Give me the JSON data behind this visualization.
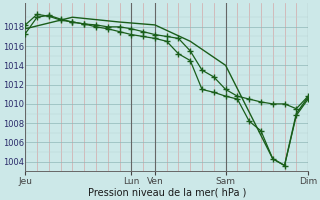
{
  "background_color": "#cce8e8",
  "grid_color_major": "#b0cccc",
  "grid_color_minor": "#e8b8b8",
  "line_color": "#1a5e1a",
  "marker_color": "#1a5e1a",
  "ylabel_ticks": [
    1004,
    1006,
    1008,
    1010,
    1012,
    1014,
    1016,
    1018
  ],
  "ylim": [
    1003.0,
    1020.5
  ],
  "xlabel": "Pression niveau de la mer( hPa )",
  "day_labels": [
    "Jeu",
    "Lun",
    "Ven",
    "Sam",
    "Dim"
  ],
  "day_positions": [
    0,
    9,
    11,
    17,
    24
  ],
  "xlim": [
    0,
    24
  ],
  "series1": {
    "x": [
      0,
      1,
      2,
      3,
      4,
      5,
      6,
      7,
      8,
      9,
      10,
      11,
      12,
      13,
      14,
      15,
      16,
      17,
      18,
      19,
      20,
      21,
      22,
      23,
      24
    ],
    "y": [
      1017.3,
      1019.0,
      1019.2,
      1018.8,
      1018.5,
      1018.3,
      1018.2,
      1018.0,
      1018.0,
      1017.8,
      1017.5,
      1017.2,
      1017.0,
      1016.8,
      1015.5,
      1013.5,
      1012.8,
      1011.5,
      1010.8,
      1010.5,
      1010.2,
      1010.0,
      1010.0,
      1009.5,
      1010.8
    ]
  },
  "series2": {
    "x": [
      0,
      1,
      2,
      3,
      4,
      5,
      6,
      7,
      8,
      9,
      10,
      11,
      12,
      13,
      14,
      15,
      16,
      17,
      18,
      19,
      20,
      21,
      22,
      23,
      24
    ],
    "y": [
      1018.2,
      1019.3,
      1019.1,
      1018.7,
      1018.5,
      1018.3,
      1018.0,
      1017.8,
      1017.5,
      1017.2,
      1017.0,
      1016.8,
      1016.5,
      1015.2,
      1014.5,
      1011.5,
      1011.2,
      1010.8,
      1010.5,
      1008.2,
      1007.2,
      1004.3,
      1003.6,
      1008.8,
      1010.5
    ]
  },
  "series3": {
    "x": [
      0,
      4,
      8,
      11,
      14,
      17,
      21,
      22,
      23,
      24
    ],
    "y": [
      1017.8,
      1019.0,
      1018.5,
      1018.2,
      1016.5,
      1014.0,
      1004.3,
      1003.6,
      1009.0,
      1010.7
    ]
  }
}
